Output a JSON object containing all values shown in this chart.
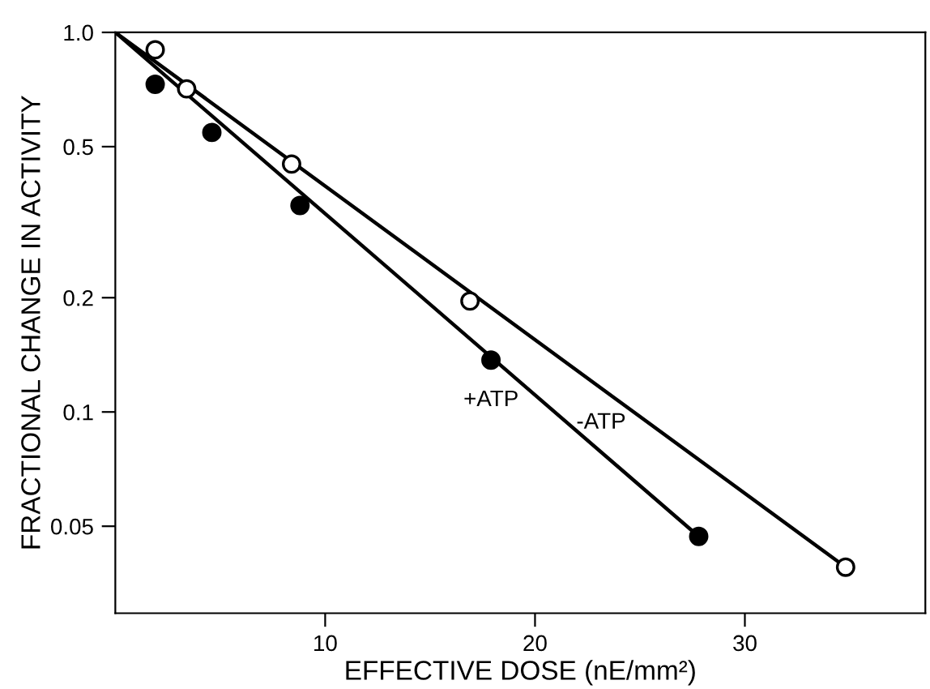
{
  "chart_data": {
    "type": "scatter",
    "xlabel": "EFFECTIVE DOSE (nE/mm²)",
    "ylabel": "FRACTIONAL CHANGE IN ACTIVITY",
    "log": "y",
    "xlim": [
      0,
      38.6
    ],
    "ylim": [
      0.0295,
      1.0
    ],
    "xticks": [
      10,
      20,
      30
    ],
    "yticks": [
      {
        "value": 1.0,
        "label": "1.0"
      },
      0.5,
      0.2,
      0.1,
      0.05
    ],
    "grid": false,
    "legend": false,
    "marker": "circle",
    "series": [
      {
        "type": "line",
        "name": "-ATP",
        "color": "#000000",
        "marker": "none",
        "line_style": "solid",
        "x": [
          0,
          34.8
        ],
        "values": [
          1.0,
          0.039
        ]
      },
      {
        "type": "line",
        "name": "+ATP",
        "color": "#000000",
        "marker": "none",
        "line_style": "solid",
        "x": [
          0,
          27.8
        ],
        "values": [
          1.0,
          0.047
        ]
      },
      {
        "color": "#ffffff",
        "x": [
          1.9,
          3.4,
          8.4,
          16.9,
          34.8
        ],
        "values": [
          0.9,
          0.71,
          0.45,
          0.196,
          0.039
        ]
      },
      {
        "color": "#000000",
        "x": [
          1.9,
          4.6,
          8.8,
          17.9,
          27.8
        ],
        "values": [
          0.73,
          0.545,
          0.35,
          0.137,
          0.047
        ]
      }
    ]
  }
}
